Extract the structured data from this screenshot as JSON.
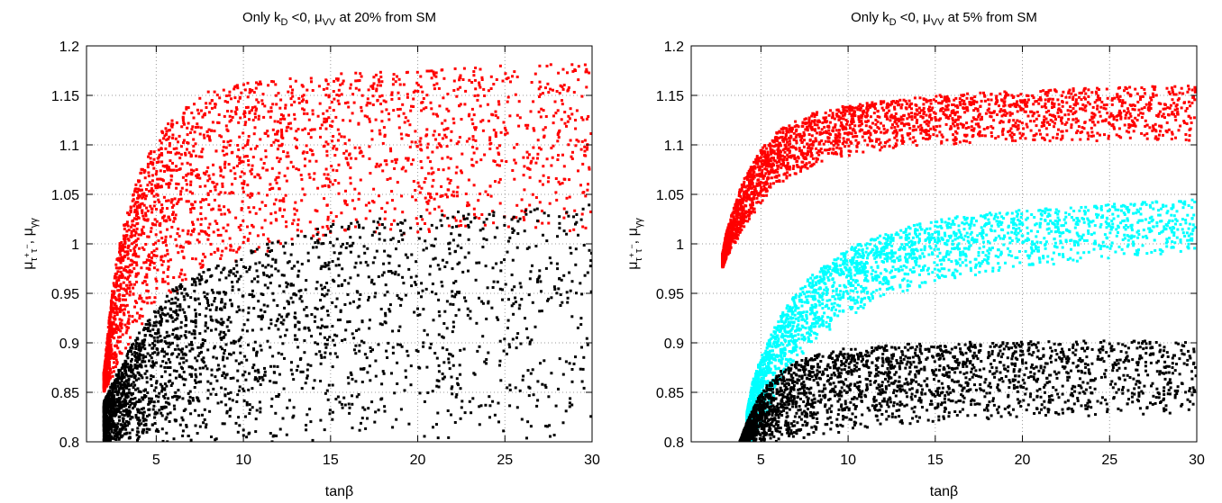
{
  "chart_data": [
    {
      "type": "scatter",
      "title": "Only k_D <0,  μ_VV at 20% from SM",
      "title_parts": {
        "prefix": "Only k",
        "sub1": "D",
        "mid": " <0,  μ",
        "sub2": "VV",
        "suffix": " at 20% from SM"
      },
      "xlabel": "tanβ",
      "ylabel": "μ_τ⁺τ⁻, μ_γγ",
      "xlim": [
        1,
        30
      ],
      "ylim": [
        0.8,
        1.2
      ],
      "xticks": [
        5,
        10,
        15,
        20,
        25,
        30
      ],
      "yticks": [
        0.8,
        0.85,
        0.9,
        0.95,
        1,
        1.05,
        1.1,
        1.15,
        1.2
      ],
      "ytick_labels": [
        "0.8",
        "0.85",
        "0.9",
        "0.95",
        "1",
        "1.05",
        "1.1",
        "1.15",
        "1.2"
      ],
      "grid": true,
      "series": [
        {
          "color": "#ff0000",
          "envelope_x": [
            2.0,
            2.5,
            3,
            4,
            5,
            6,
            7,
            8,
            10,
            12,
            15,
            20,
            25,
            30
          ],
          "upper": [
            0.87,
            0.96,
            1.01,
            1.07,
            1.11,
            1.13,
            1.145,
            1.155,
            1.162,
            1.167,
            1.172,
            1.176,
            1.18,
            1.183
          ],
          "lower": [
            0.85,
            0.865,
            0.885,
            0.915,
            0.935,
            0.95,
            0.962,
            0.972,
            0.985,
            0.995,
            1.005,
            1.01,
            1.012,
            1.013
          ]
        },
        {
          "color": "#000000",
          "envelope_x": [
            2.0,
            2.5,
            3,
            4,
            5,
            6,
            7,
            8,
            10,
            12,
            15,
            20,
            25,
            30
          ],
          "upper": [
            0.84,
            0.86,
            0.88,
            0.91,
            0.935,
            0.955,
            0.965,
            0.975,
            0.99,
            1.005,
            1.02,
            1.03,
            1.035,
            1.04
          ],
          "lower": [
            0.8,
            0.8,
            0.8,
            0.8,
            0.8,
            0.8,
            0.8,
            0.8,
            0.8,
            0.8,
            0.8,
            0.8,
            0.8,
            0.8
          ]
        }
      ]
    },
    {
      "type": "scatter",
      "title": "Only k_D <0,  μ_VV at 5% from SM",
      "title_parts": {
        "prefix": "Only k",
        "sub1": "D",
        "mid": " <0,  μ",
        "sub2": "VV",
        "suffix": " at 5% from SM"
      },
      "xlabel": "tanβ",
      "ylabel": "μ_τ⁺τ⁻, μ_γγ",
      "xlim": [
        1,
        30
      ],
      "ylim": [
        0.8,
        1.2
      ],
      "xticks": [
        5,
        10,
        15,
        20,
        25,
        30
      ],
      "yticks": [
        0.8,
        0.85,
        0.9,
        0.95,
        1,
        1.05,
        1.1,
        1.15,
        1.2
      ],
      "ytick_labels": [
        "0.8",
        "0.85",
        "0.9",
        "0.95",
        "1",
        "1.05",
        "1.1",
        "1.15",
        "1.2"
      ],
      "grid": true,
      "series": [
        {
          "color": "#ff0000",
          "envelope_x": [
            2.8,
            3.0,
            3.5,
            4,
            5,
            6,
            7,
            8,
            10,
            12,
            15,
            20,
            25,
            30
          ],
          "upper": [
            0.99,
            1.01,
            1.04,
            1.065,
            1.095,
            1.115,
            1.125,
            1.132,
            1.14,
            1.145,
            1.15,
            1.155,
            1.158,
            1.16
          ],
          "lower": [
            0.975,
            0.985,
            1.0,
            1.015,
            1.04,
            1.06,
            1.07,
            1.078,
            1.088,
            1.095,
            1.1,
            1.102,
            1.103,
            1.104
          ]
        },
        {
          "color": "#00ffff",
          "envelope_x": [
            4.2,
            4.5,
            5,
            6,
            7,
            8,
            10,
            12,
            15,
            20,
            25,
            30
          ],
          "upper": [
            0.83,
            0.86,
            0.885,
            0.925,
            0.95,
            0.97,
            0.995,
            1.01,
            1.025,
            1.035,
            1.04,
            1.045
          ],
          "lower": [
            0.8,
            0.8,
            0.815,
            0.855,
            0.88,
            0.9,
            0.925,
            0.945,
            0.96,
            0.975,
            0.985,
            0.99
          ]
        },
        {
          "color": "#000000",
          "envelope_x": [
            3.8,
            4.2,
            5,
            6,
            7,
            8,
            10,
            12,
            15,
            20,
            25,
            30
          ],
          "upper": [
            0.8,
            0.82,
            0.85,
            0.87,
            0.88,
            0.888,
            0.895,
            0.898,
            0.9,
            0.902,
            0.902,
            0.902
          ],
          "lower": [
            0.8,
            0.8,
            0.8,
            0.8,
            0.8,
            0.805,
            0.81,
            0.815,
            0.82,
            0.825,
            0.825,
            0.825
          ]
        }
      ]
    }
  ]
}
